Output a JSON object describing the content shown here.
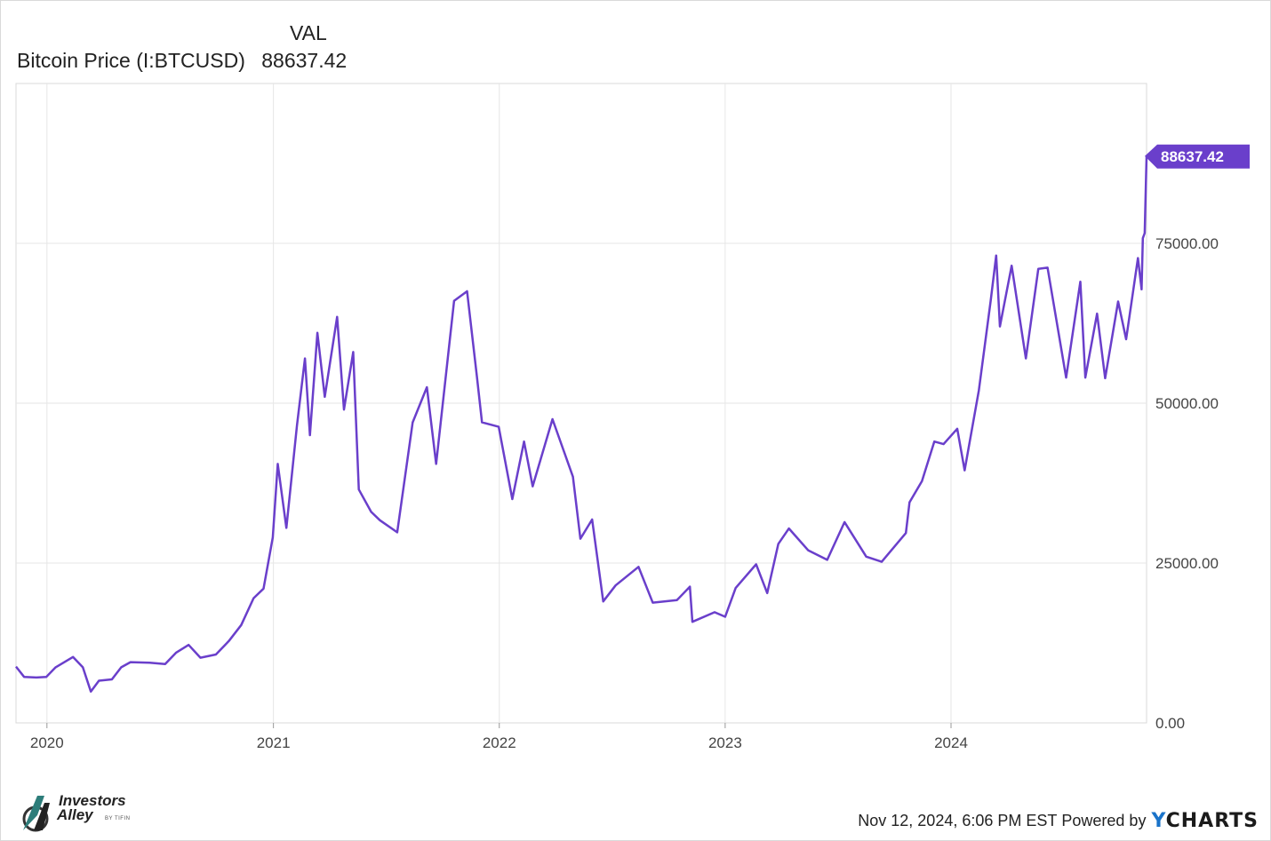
{
  "legend": {
    "column_header": "VAL",
    "series_name": "Bitcoin Price (I:BTCUSD)",
    "series_value": "88637.42"
  },
  "footer": {
    "timestamp": "Nov 12, 2024, 6:06 PM EST",
    "powered_by": "Powered by",
    "brand_y": "Y",
    "brand_rest": "CHARTS",
    "logo_line1": "Investors",
    "logo_line2": "Alley",
    "logo_byline": "BY TIFIN"
  },
  "colors": {
    "series": "#6a3fcb",
    "grid": "#e6e6e6",
    "brand_y": "#1a73c9"
  },
  "chart_data": {
    "type": "line",
    "title": "",
    "xlabel": "",
    "ylabel": "",
    "x_range": [
      "2019-11-12",
      "2024-11-12"
    ],
    "ylim": [
      0,
      100000
    ],
    "y_ticks": [
      0,
      25000,
      50000,
      75000
    ],
    "y_tick_labels": [
      "0.00",
      "25000.00",
      "50000.00",
      "75000.00"
    ],
    "x_ticks": [
      "2020-01-01",
      "2021-01-01",
      "2022-01-01",
      "2023-01-01",
      "2024-01-01"
    ],
    "x_tick_labels": [
      "2020",
      "2021",
      "2022",
      "2023",
      "2024"
    ],
    "axis_position": "right",
    "grid": true,
    "last_value_label": "88637.42",
    "series": [
      {
        "name": "Bitcoin Price (I:BTCUSD)",
        "points": [
          [
            "2019-11-12",
            8800
          ],
          [
            "2019-11-25",
            7200
          ],
          [
            "2019-12-15",
            7100
          ],
          [
            "2019-12-31",
            7200
          ],
          [
            "2020-01-15",
            8700
          ],
          [
            "2020-02-12",
            10300
          ],
          [
            "2020-02-28",
            8700
          ],
          [
            "2020-03-12",
            4900
          ],
          [
            "2020-03-25",
            6600
          ],
          [
            "2020-04-15",
            6800
          ],
          [
            "2020-04-30",
            8700
          ],
          [
            "2020-05-15",
            9500
          ],
          [
            "2020-06-15",
            9400
          ],
          [
            "2020-07-10",
            9200
          ],
          [
            "2020-07-28",
            11000
          ],
          [
            "2020-08-17",
            12200
          ],
          [
            "2020-09-05",
            10200
          ],
          [
            "2020-09-30",
            10700
          ],
          [
            "2020-10-21",
            12800
          ],
          [
            "2020-11-10",
            15300
          ],
          [
            "2020-11-30",
            19500
          ],
          [
            "2020-12-16",
            21000
          ],
          [
            "2020-12-31",
            29000
          ],
          [
            "2021-01-08",
            40500
          ],
          [
            "2021-01-22",
            30500
          ],
          [
            "2021-02-08",
            46500
          ],
          [
            "2021-02-21",
            57000
          ],
          [
            "2021-03-01",
            45000
          ],
          [
            "2021-03-13",
            61000
          ],
          [
            "2021-03-25",
            51000
          ],
          [
            "2021-04-14",
            63500
          ],
          [
            "2021-04-25",
            49000
          ],
          [
            "2021-05-10",
            58000
          ],
          [
            "2021-05-19",
            36500
          ],
          [
            "2021-06-08",
            33000
          ],
          [
            "2021-06-22",
            31700
          ],
          [
            "2021-07-20",
            29800
          ],
          [
            "2021-08-14",
            47000
          ],
          [
            "2021-09-06",
            52500
          ],
          [
            "2021-09-21",
            40500
          ],
          [
            "2021-10-20",
            66000
          ],
          [
            "2021-11-10",
            67500
          ],
          [
            "2021-11-26",
            54000
          ],
          [
            "2021-12-04",
            47000
          ],
          [
            "2021-12-31",
            46300
          ],
          [
            "2022-01-22",
            35000
          ],
          [
            "2022-02-10",
            44000
          ],
          [
            "2022-02-24",
            37000
          ],
          [
            "2022-03-28",
            47500
          ],
          [
            "2022-04-30",
            38500
          ],
          [
            "2022-05-12",
            28800
          ],
          [
            "2022-05-31",
            31800
          ],
          [
            "2022-06-18",
            19000
          ],
          [
            "2022-07-08",
            21500
          ],
          [
            "2022-08-14",
            24400
          ],
          [
            "2022-09-06",
            18800
          ],
          [
            "2022-10-15",
            19200
          ],
          [
            "2022-11-05",
            21300
          ],
          [
            "2022-11-09",
            15800
          ],
          [
            "2022-12-15",
            17300
          ],
          [
            "2023-01-01",
            16600
          ],
          [
            "2023-01-18",
            21100
          ],
          [
            "2023-02-20",
            24800
          ],
          [
            "2023-03-10",
            20300
          ],
          [
            "2023-03-28",
            28000
          ],
          [
            "2023-04-14",
            30400
          ],
          [
            "2023-05-15",
            27000
          ],
          [
            "2023-06-15",
            25500
          ],
          [
            "2023-07-13",
            31400
          ],
          [
            "2023-08-17",
            26000
          ],
          [
            "2023-09-11",
            25200
          ],
          [
            "2023-10-20",
            29700
          ],
          [
            "2023-10-26",
            34500
          ],
          [
            "2023-11-15",
            37800
          ],
          [
            "2023-12-05",
            44000
          ],
          [
            "2023-12-20",
            43600
          ],
          [
            "2024-01-11",
            46000
          ],
          [
            "2024-01-23",
            39500
          ],
          [
            "2024-02-15",
            52000
          ],
          [
            "2024-03-05",
            66000
          ],
          [
            "2024-03-14",
            73100
          ],
          [
            "2024-03-20",
            62000
          ],
          [
            "2024-04-08",
            71500
          ],
          [
            "2024-05-01",
            57000
          ],
          [
            "2024-05-21",
            71000
          ],
          [
            "2024-06-05",
            71200
          ],
          [
            "2024-07-05",
            54000
          ],
          [
            "2024-07-28",
            69000
          ],
          [
            "2024-08-05",
            54000
          ],
          [
            "2024-08-24",
            64000
          ],
          [
            "2024-09-06",
            53900
          ],
          [
            "2024-09-27",
            65900
          ],
          [
            "2024-10-10",
            60000
          ],
          [
            "2024-10-29",
            72700
          ],
          [
            "2024-11-04",
            67800
          ],
          [
            "2024-11-06",
            75800
          ],
          [
            "2024-11-09",
            76600
          ],
          [
            "2024-11-12",
            88637.42
          ]
        ]
      }
    ]
  }
}
